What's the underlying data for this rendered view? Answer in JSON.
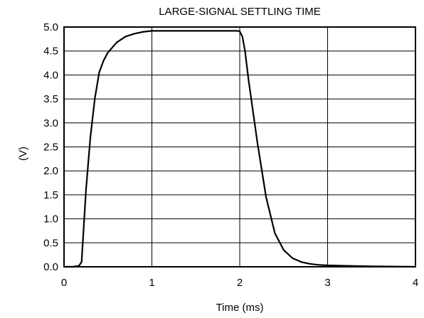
{
  "chart_data": {
    "type": "line",
    "title": "LARGE-SIGNAL SETTLING TIME",
    "xlabel": "Time (ms)",
    "ylabel": "(V)",
    "xlim": [
      0,
      4
    ],
    "ylim": [
      0,
      5
    ],
    "grid": true,
    "x_ticks": [
      "0",
      "1",
      "2",
      "3",
      "4"
    ],
    "y_ticks": [
      "0.0",
      "0.5",
      "1.0",
      "1.5",
      "2.0",
      "2.5",
      "3.0",
      "3.5",
      "4.0",
      "4.5",
      "5.0"
    ],
    "series": [
      {
        "x": [
          0.0,
          0.1,
          0.17,
          0.2,
          0.22,
          0.25,
          0.3,
          0.35,
          0.4,
          0.45,
          0.5,
          0.6,
          0.7,
          0.8,
          0.9,
          1.0,
          1.2,
          1.5,
          1.8,
          1.98,
          2.0,
          2.03,
          2.06,
          2.1,
          2.2,
          2.3,
          2.4,
          2.5,
          2.6,
          2.7,
          2.8,
          2.9,
          3.0,
          3.2,
          3.5,
          4.0
        ],
        "y": [
          0.0,
          0.0,
          0.02,
          0.1,
          0.7,
          1.6,
          2.7,
          3.5,
          4.05,
          4.3,
          4.47,
          4.68,
          4.8,
          4.86,
          4.9,
          4.92,
          4.92,
          4.92,
          4.92,
          4.92,
          4.91,
          4.8,
          4.5,
          3.9,
          2.6,
          1.45,
          0.7,
          0.35,
          0.18,
          0.1,
          0.06,
          0.04,
          0.03,
          0.02,
          0.01,
          0.0
        ]
      }
    ]
  }
}
